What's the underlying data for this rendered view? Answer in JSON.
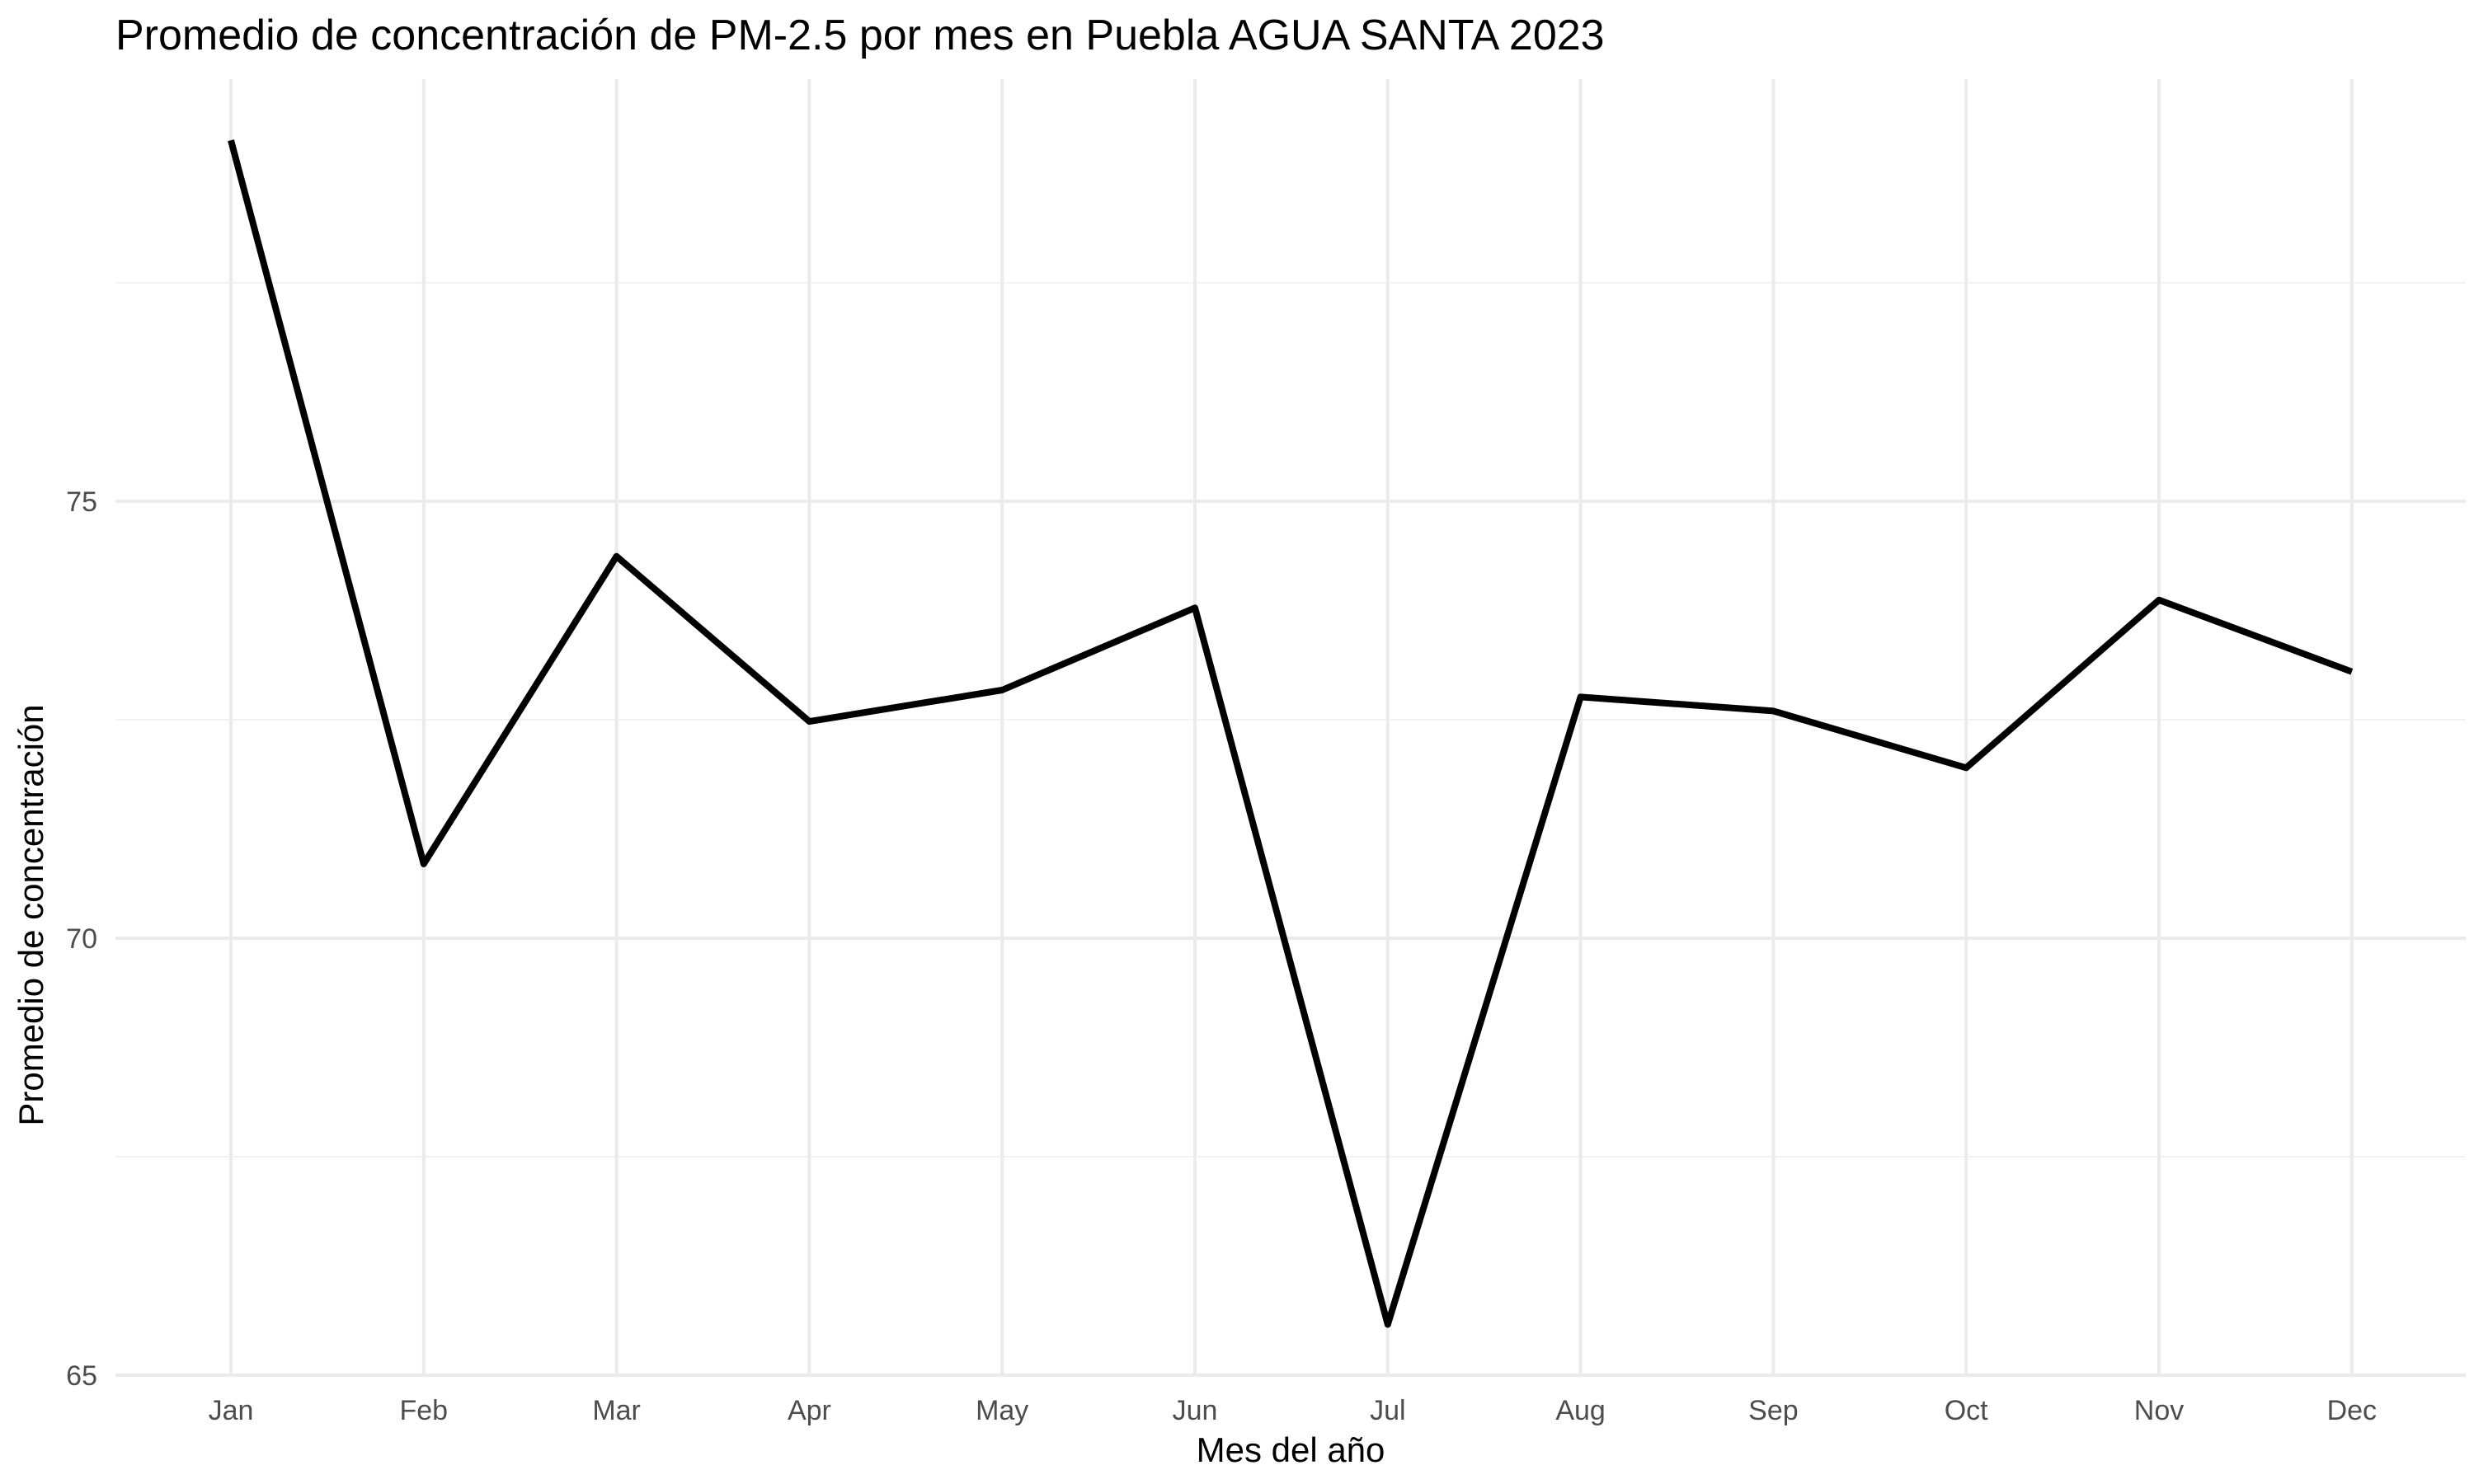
{
  "chart_data": {
    "type": "line",
    "title": "Promedio de concentración de PM-2.5 por mes en Puebla AGUA SANTA 2023",
    "xlabel": "Mes del año",
    "ylabel": "Promedio de concentración",
    "categories": [
      "Jan",
      "Feb",
      "Mar",
      "Apr",
      "May",
      "Jun",
      "Jul",
      "Aug",
      "Sep",
      "Oct",
      "Nov",
      "Dec"
    ],
    "series": [
      {
        "values": [
          79.13,
          70.85,
          74.37,
          72.48,
          72.84,
          73.78,
          65.58,
          72.76,
          72.6,
          71.95,
          73.87,
          73.05
        ]
      }
    ],
    "ylim": [
      65,
      80
    ],
    "yticks": [
      65,
      70,
      75
    ],
    "grid": true,
    "legend": "none",
    "colors": {
      "line": "#000000",
      "grid_major": "#ebebeb",
      "grid_minor": "#f2f2f2",
      "tick_text": "#4d4d4d"
    }
  }
}
